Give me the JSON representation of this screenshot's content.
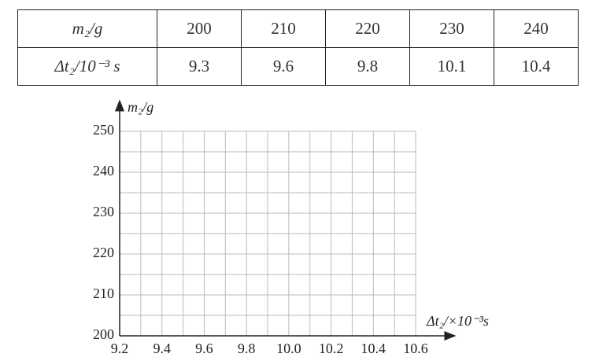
{
  "table": {
    "header": [
      "m₂/g",
      "200",
      "210",
      "220",
      "230",
      "240"
    ],
    "rows": [
      [
        "Δt₂/10⁻³ s",
        "9.3",
        "9.6",
        "9.8",
        "10.1",
        "10.4"
      ]
    ]
  },
  "chart_data": {
    "type": "scatter",
    "xlabel": "Δt₂/×10⁻³s",
    "ylabel": "m₂/g",
    "xlim": [
      9.2,
      10.6
    ],
    "ylim": [
      200,
      250
    ],
    "xticks": [
      9.2,
      9.4,
      9.6,
      9.8,
      {
        "value": 10,
        "label": "10.0"
      },
      10.2,
      10.4,
      10.6
    ],
    "yticks": [
      200,
      210,
      220,
      230,
      240,
      250
    ],
    "xminorticks": [
      9.3,
      9.5,
      9.7,
      9.9,
      10.1,
      10.3,
      10.5
    ],
    "yminorticks": [
      205,
      215,
      225,
      235,
      245
    ],
    "grid": true,
    "color": "#bbbbbb"
  }
}
